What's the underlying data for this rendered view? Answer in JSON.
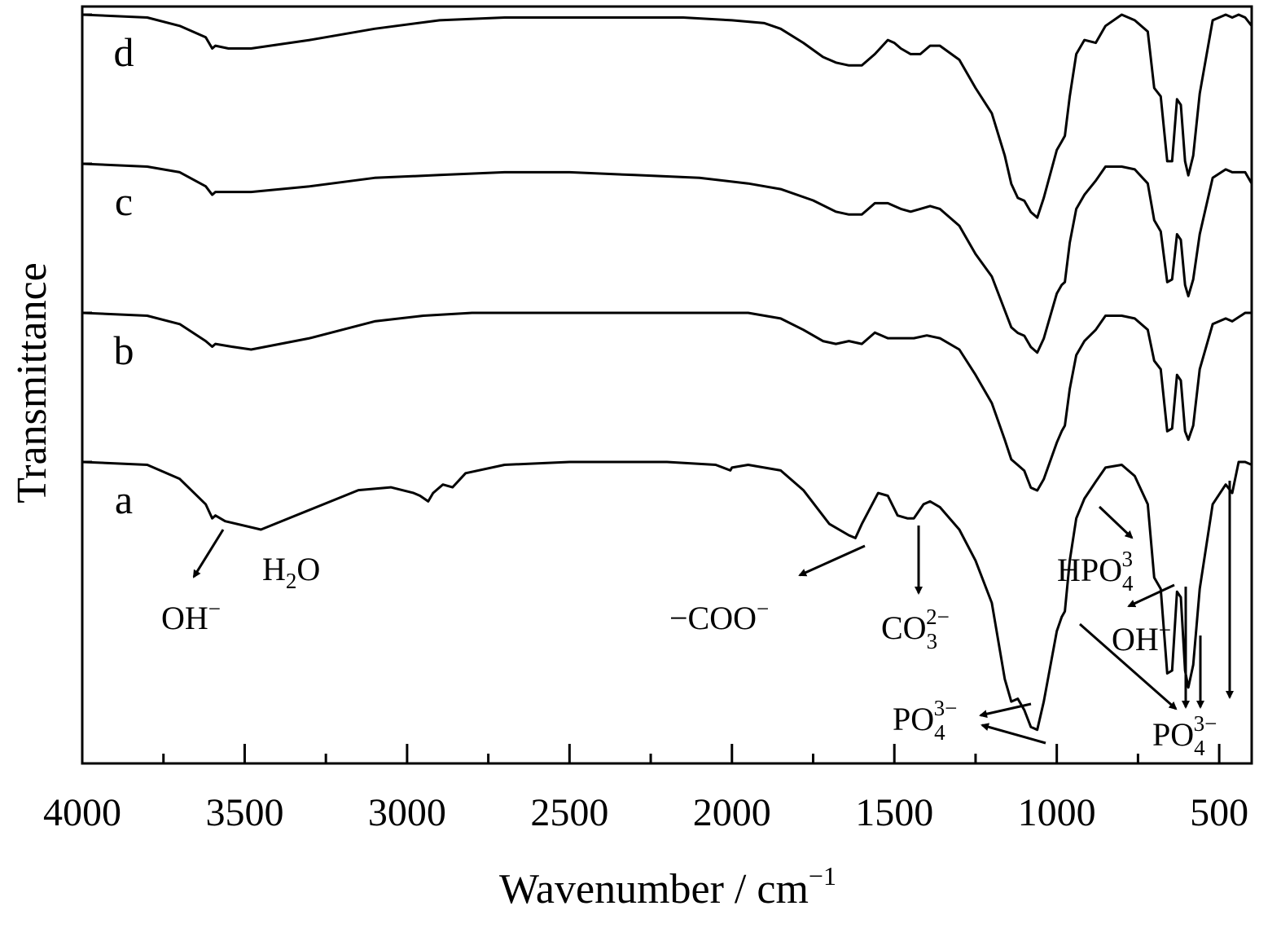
{
  "chart_data": {
    "type": "line",
    "xlabel": "Wavenumber / cm",
    "xlabel_sup": "−1",
    "ylabel": "Transmittance",
    "xlim": [
      4000,
      400
    ],
    "x_reversed": true,
    "x_ticks": [
      {
        "value": 4000,
        "label": "4000"
      },
      {
        "value": 3500,
        "label": "3500"
      },
      {
        "value": 3000,
        "label": "3000"
      },
      {
        "value": 2500,
        "label": "2500"
      },
      {
        "value": 2000,
        "label": "2000"
      },
      {
        "value": 1500,
        "label": "1500"
      },
      {
        "value": 1000,
        "label": "1000"
      },
      {
        "value": 500,
        "label": "500"
      }
    ],
    "y_ticks_labelled": false,
    "note": "Stacked IR spectra; transmittance in arbitrary units (0 = baseline top, 100 = strongest absorption of spectrum a).",
    "series": [
      {
        "name": "a",
        "offset": 0,
        "points": [
          [
            4000,
            0
          ],
          [
            3800,
            1
          ],
          [
            3700,
            6
          ],
          [
            3620,
            15
          ],
          [
            3600,
            20
          ],
          [
            3590,
            19
          ],
          [
            3560,
            21
          ],
          [
            3450,
            24
          ],
          [
            3300,
            17
          ],
          [
            3150,
            10
          ],
          [
            3050,
            9
          ],
          [
            2980,
            11
          ],
          [
            2960,
            12
          ],
          [
            2935,
            14
          ],
          [
            2920,
            11
          ],
          [
            2890,
            8
          ],
          [
            2860,
            9
          ],
          [
            2820,
            4
          ],
          [
            2700,
            1
          ],
          [
            2500,
            0
          ],
          [
            2200,
            0
          ],
          [
            2050,
            1
          ],
          [
            2005,
            3
          ],
          [
            2000,
            2
          ],
          [
            1950,
            1
          ],
          [
            1850,
            3
          ],
          [
            1780,
            10
          ],
          [
            1700,
            22
          ],
          [
            1640,
            26
          ],
          [
            1620,
            27
          ],
          [
            1600,
            22
          ],
          [
            1550,
            11
          ],
          [
            1520,
            12
          ],
          [
            1490,
            19
          ],
          [
            1460,
            20
          ],
          [
            1440,
            20
          ],
          [
            1410,
            15
          ],
          [
            1390,
            14
          ],
          [
            1360,
            16
          ],
          [
            1300,
            24
          ],
          [
            1250,
            35
          ],
          [
            1200,
            50
          ],
          [
            1160,
            77
          ],
          [
            1140,
            85
          ],
          [
            1120,
            84
          ],
          [
            1100,
            88
          ],
          [
            1080,
            94
          ],
          [
            1060,
            95
          ],
          [
            1040,
            85
          ],
          [
            1000,
            60
          ],
          [
            985,
            55
          ],
          [
            975,
            53
          ],
          [
            960,
            35
          ],
          [
            940,
            20
          ],
          [
            915,
            13
          ],
          [
            880,
            7
          ],
          [
            850,
            2
          ],
          [
            800,
            1
          ],
          [
            760,
            5
          ],
          [
            720,
            15
          ],
          [
            700,
            41
          ],
          [
            680,
            45
          ],
          [
            660,
            75
          ],
          [
            645,
            74
          ],
          [
            630,
            46
          ],
          [
            618,
            48
          ],
          [
            605,
            74
          ],
          [
            595,
            80
          ],
          [
            580,
            72
          ],
          [
            560,
            45
          ],
          [
            520,
            15
          ],
          [
            480,
            8
          ],
          [
            460,
            11
          ],
          [
            440,
            0
          ],
          [
            420,
            0
          ],
          [
            400,
            1
          ]
        ]
      },
      {
        "name": "b",
        "offset": 0.49,
        "points": [
          [
            4000,
            0
          ],
          [
            3800,
            1
          ],
          [
            3700,
            4
          ],
          [
            3620,
            10
          ],
          [
            3600,
            12
          ],
          [
            3590,
            11
          ],
          [
            3540,
            12
          ],
          [
            3480,
            13
          ],
          [
            3300,
            9
          ],
          [
            3100,
            3
          ],
          [
            2950,
            1
          ],
          [
            2800,
            0
          ],
          [
            2500,
            0
          ],
          [
            2200,
            0
          ],
          [
            1950,
            0
          ],
          [
            1850,
            2
          ],
          [
            1780,
            6
          ],
          [
            1720,
            10
          ],
          [
            1680,
            11
          ],
          [
            1640,
            10
          ],
          [
            1600,
            11
          ],
          [
            1560,
            7
          ],
          [
            1520,
            9
          ],
          [
            1480,
            9
          ],
          [
            1440,
            9
          ],
          [
            1400,
            8
          ],
          [
            1360,
            9
          ],
          [
            1300,
            13
          ],
          [
            1250,
            22
          ],
          [
            1200,
            32
          ],
          [
            1160,
            45
          ],
          [
            1140,
            52
          ],
          [
            1120,
            54
          ],
          [
            1100,
            56
          ],
          [
            1080,
            62
          ],
          [
            1060,
            63
          ],
          [
            1040,
            59
          ],
          [
            1000,
            46
          ],
          [
            985,
            42
          ],
          [
            975,
            40
          ],
          [
            960,
            27
          ],
          [
            940,
            15
          ],
          [
            915,
            10
          ],
          [
            880,
            6
          ],
          [
            850,
            1
          ],
          [
            800,
            1
          ],
          [
            760,
            2
          ],
          [
            720,
            6
          ],
          [
            700,
            17
          ],
          [
            680,
            20
          ],
          [
            660,
            42
          ],
          [
            645,
            41
          ],
          [
            630,
            22
          ],
          [
            618,
            24
          ],
          [
            605,
            42
          ],
          [
            595,
            45
          ],
          [
            580,
            40
          ],
          [
            560,
            20
          ],
          [
            520,
            4
          ],
          [
            480,
            2
          ],
          [
            460,
            3
          ],
          [
            420,
            0
          ],
          [
            400,
            0
          ]
        ]
      },
      {
        "name": "c",
        "offset": 0.98,
        "points": [
          [
            4000,
            0
          ],
          [
            3800,
            1
          ],
          [
            3700,
            3
          ],
          [
            3620,
            8
          ],
          [
            3600,
            11
          ],
          [
            3590,
            10
          ],
          [
            3560,
            10
          ],
          [
            3480,
            10
          ],
          [
            3300,
            8
          ],
          [
            3100,
            5
          ],
          [
            2900,
            4
          ],
          [
            2700,
            3
          ],
          [
            2500,
            3
          ],
          [
            2300,
            4
          ],
          [
            2100,
            5
          ],
          [
            1950,
            7
          ],
          [
            1850,
            9
          ],
          [
            1750,
            13
          ],
          [
            1680,
            17
          ],
          [
            1640,
            18
          ],
          [
            1600,
            18
          ],
          [
            1560,
            14
          ],
          [
            1520,
            14
          ],
          [
            1480,
            16
          ],
          [
            1450,
            17
          ],
          [
            1420,
            16
          ],
          [
            1390,
            15
          ],
          [
            1360,
            16
          ],
          [
            1300,
            22
          ],
          [
            1250,
            32
          ],
          [
            1200,
            40
          ],
          [
            1160,
            52
          ],
          [
            1140,
            58
          ],
          [
            1120,
            60
          ],
          [
            1100,
            61
          ],
          [
            1080,
            65
          ],
          [
            1060,
            67
          ],
          [
            1040,
            62
          ],
          [
            1000,
            46
          ],
          [
            985,
            43
          ],
          [
            975,
            42
          ],
          [
            960,
            28
          ],
          [
            940,
            16
          ],
          [
            915,
            11
          ],
          [
            880,
            6
          ],
          [
            850,
            1
          ],
          [
            800,
            1
          ],
          [
            760,
            2
          ],
          [
            720,
            7
          ],
          [
            700,
            20
          ],
          [
            680,
            24
          ],
          [
            660,
            42
          ],
          [
            645,
            41
          ],
          [
            630,
            25
          ],
          [
            618,
            27
          ],
          [
            605,
            43
          ],
          [
            595,
            47
          ],
          [
            580,
            41
          ],
          [
            560,
            25
          ],
          [
            520,
            5
          ],
          [
            480,
            2
          ],
          [
            460,
            3
          ],
          [
            420,
            3
          ],
          [
            400,
            7
          ]
        ]
      },
      {
        "name": "d",
        "offset": 1.47,
        "points": [
          [
            4000,
            0
          ],
          [
            3800,
            1
          ],
          [
            3700,
            4
          ],
          [
            3620,
            8
          ],
          [
            3600,
            12
          ],
          [
            3590,
            11
          ],
          [
            3550,
            12
          ],
          [
            3480,
            12
          ],
          [
            3300,
            9
          ],
          [
            3100,
            5
          ],
          [
            2900,
            2
          ],
          [
            2700,
            1
          ],
          [
            2500,
            1
          ],
          [
            2300,
            1
          ],
          [
            2150,
            1
          ],
          [
            2000,
            2
          ],
          [
            1900,
            3
          ],
          [
            1850,
            5
          ],
          [
            1780,
            10
          ],
          [
            1720,
            15
          ],
          [
            1680,
            17
          ],
          [
            1640,
            18
          ],
          [
            1600,
            18
          ],
          [
            1560,
            14
          ],
          [
            1520,
            9
          ],
          [
            1500,
            10
          ],
          [
            1480,
            12
          ],
          [
            1450,
            14
          ],
          [
            1420,
            14
          ],
          [
            1390,
            11
          ],
          [
            1360,
            11
          ],
          [
            1300,
            16
          ],
          [
            1250,
            26
          ],
          [
            1200,
            35
          ],
          [
            1160,
            50
          ],
          [
            1140,
            60
          ],
          [
            1120,
            65
          ],
          [
            1100,
            66
          ],
          [
            1080,
            70
          ],
          [
            1060,
            72
          ],
          [
            1040,
            65
          ],
          [
            1000,
            48
          ],
          [
            985,
            45
          ],
          [
            975,
            43
          ],
          [
            960,
            29
          ],
          [
            940,
            14
          ],
          [
            915,
            9
          ],
          [
            880,
            10
          ],
          [
            850,
            4
          ],
          [
            800,
            0
          ],
          [
            760,
            2
          ],
          [
            720,
            6
          ],
          [
            700,
            26
          ],
          [
            680,
            29
          ],
          [
            660,
            52
          ],
          [
            645,
            52
          ],
          [
            630,
            30
          ],
          [
            618,
            32
          ],
          [
            605,
            52
          ],
          [
            595,
            57
          ],
          [
            580,
            50
          ],
          [
            560,
            28
          ],
          [
            520,
            2
          ],
          [
            480,
            0
          ],
          [
            460,
            1
          ],
          [
            440,
            0
          ],
          [
            420,
            1
          ],
          [
            400,
            4
          ]
        ]
      }
    ],
    "annotations": [
      {
        "main": "OH",
        "sup": "−",
        "sub": ""
      },
      {
        "main": "H",
        "sub": "2",
        "main2": "O"
      },
      {
        "main": "−COO",
        "sup": "−"
      },
      {
        "main": "CO",
        "sub": "3",
        "sup": "2−"
      },
      {
        "main": "HPO",
        "sub": "4",
        "sup": "3"
      },
      {
        "main": "OH",
        "sup": "−"
      },
      {
        "main": "PO",
        "sub": "4",
        "sup": "3−"
      },
      {
        "main": "PO",
        "sub": "4",
        "sup": "3−"
      }
    ]
  }
}
